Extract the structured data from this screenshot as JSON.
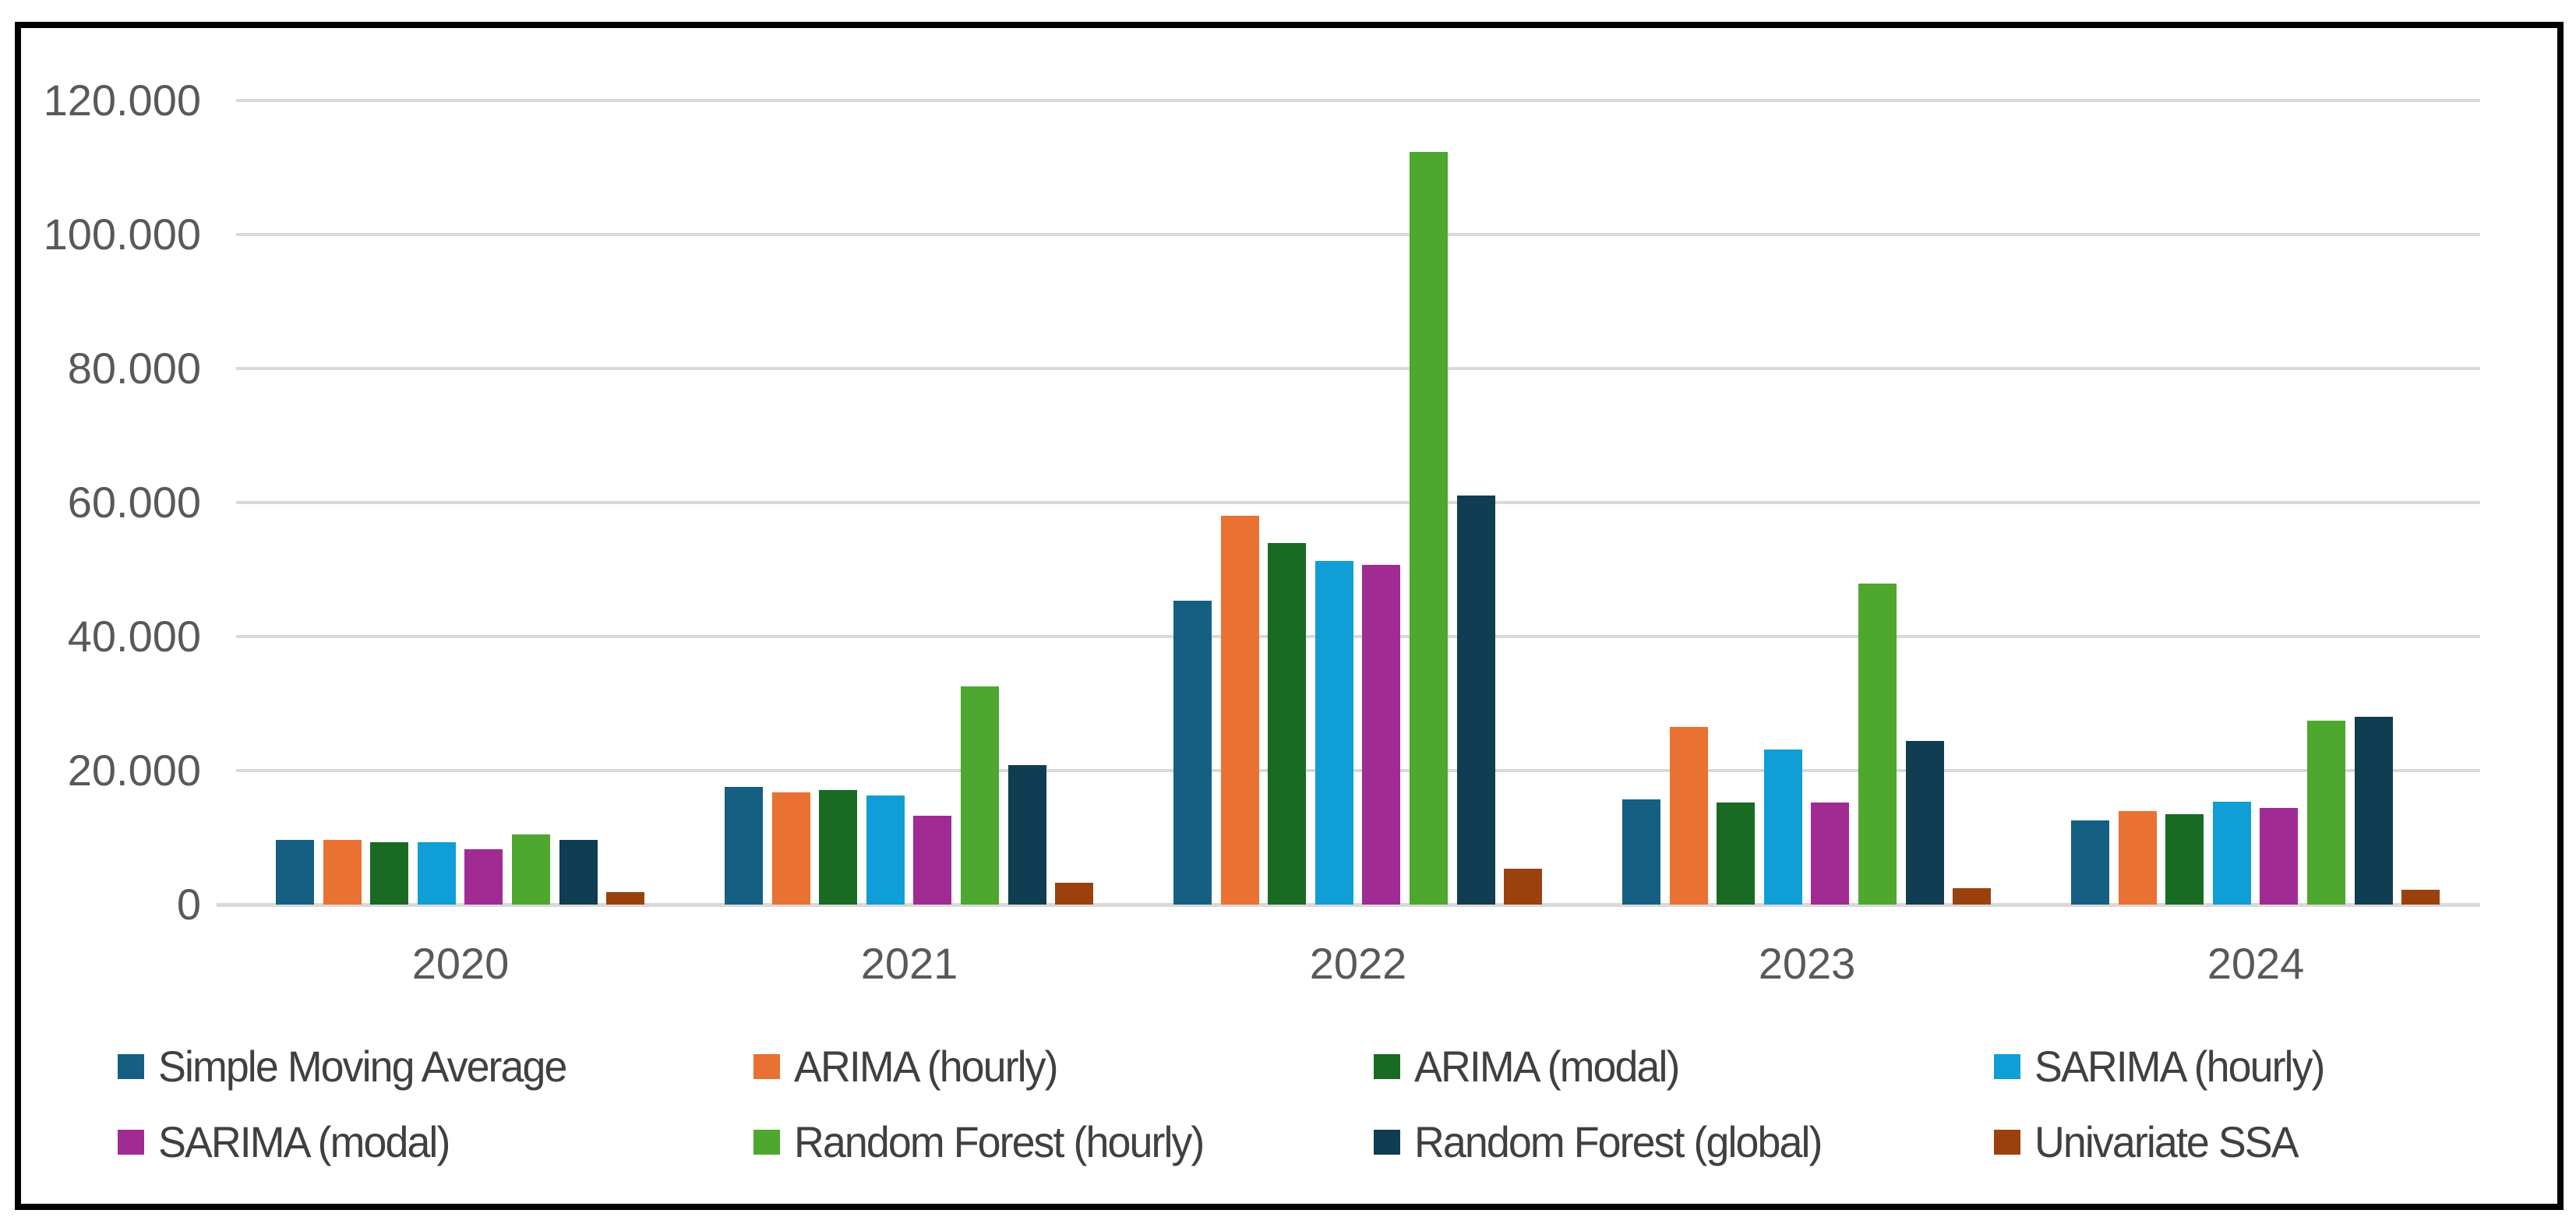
{
  "chart_data": {
    "type": "bar",
    "title": "",
    "categories": [
      "2020",
      "2021",
      "2022",
      "2023",
      "2024"
    ],
    "series": [
      {
        "name": "Simple Moving Average",
        "color": "#156082",
        "values": [
          9700,
          17600,
          45300,
          15700,
          12600
        ]
      },
      {
        "name": "ARIMA (hourly)",
        "color": "#E97132",
        "values": [
          9700,
          16700,
          58000,
          26500,
          13900
        ]
      },
      {
        "name": "ARIMA (modal)",
        "color": "#196B24",
        "values": [
          9300,
          17100,
          53900,
          15200,
          13500
        ]
      },
      {
        "name": "SARIMA (hourly)",
        "color": "#0F9ED5",
        "values": [
          9300,
          16300,
          51300,
          23100,
          15300
        ]
      },
      {
        "name": "SARIMA (modal)",
        "color": "#A02B93",
        "values": [
          8300,
          13300,
          50700,
          15200,
          14400
        ]
      },
      {
        "name": "Random Forest (hourly)",
        "color": "#4EA72E",
        "values": [
          10500,
          32500,
          112300,
          47900,
          27400
        ]
      },
      {
        "name": "Random Forest (global)",
        "color": "#103D51",
        "values": [
          9700,
          20800,
          61000,
          24400,
          28000
        ]
      },
      {
        "name": "Univariate SSA",
        "color": "#9B410E",
        "values": [
          1900,
          3200,
          5300,
          2400,
          2200
        ]
      }
    ],
    "y_axis": {
      "min": 0,
      "max": 120000,
      "tick_values": [
        120000,
        100000,
        80000,
        60000,
        40000,
        20000,
        0
      ],
      "tick_labels": [
        "120.000",
        "100.000",
        "80.000",
        "60.000",
        "40.000",
        "20.000",
        "0"
      ]
    },
    "x_axis": {
      "tick_labels": [
        "2020",
        "2021",
        "2022",
        "2023",
        "2024"
      ]
    },
    "grid": true,
    "legend_position": "bottom",
    "colors": {
      "gridline": "#D9D9D9",
      "axis_line": "#D9D9D9",
      "tick_text": "#595959",
      "legend_text": "#404040",
      "frame_border": "#000000",
      "background": "#FFFFFF"
    }
  }
}
